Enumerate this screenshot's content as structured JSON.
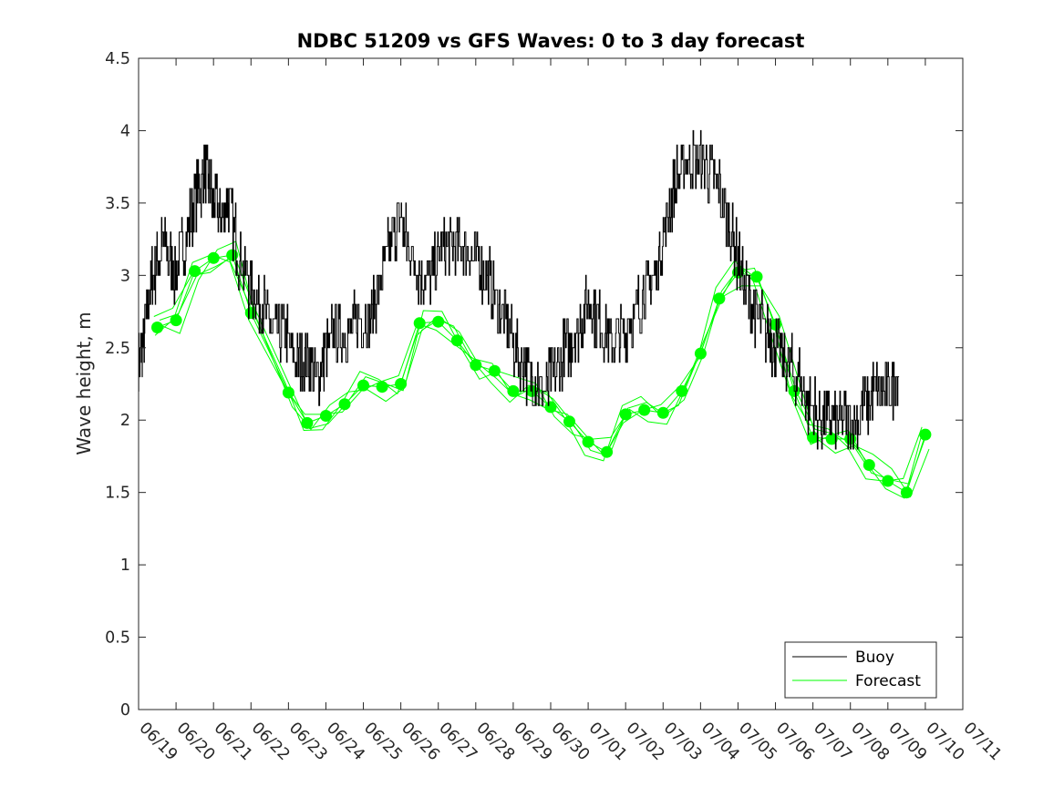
{
  "chart_data": {
    "type": "line",
    "title": "NDBC 51209 vs GFS Waves: 0 to 3 day forecast",
    "xlabel": "",
    "ylabel": "Wave height, m",
    "xlim": [
      "06/19",
      "07/11"
    ],
    "ylim": [
      0,
      4.5
    ],
    "y_ticks": [
      "0",
      "0.5",
      "1",
      "1.5",
      "2",
      "2.5",
      "3",
      "3.5",
      "4",
      "4.5"
    ],
    "x_ticks": [
      "06/19",
      "06/20",
      "06/21",
      "06/22",
      "06/23",
      "06/24",
      "06/25",
      "06/26",
      "06/27",
      "06/28",
      "06/29",
      "06/30",
      "07/01",
      "07/02",
      "07/03",
      "07/04",
      "07/05",
      "07/06",
      "07/07",
      "07/08",
      "07/09",
      "07/10",
      "07/11"
    ],
    "grid": false,
    "legend_position": "bottom-right",
    "colors": {
      "buoy": "#000000",
      "forecast": "#00ff00"
    },
    "series": [
      {
        "name": "Buoy",
        "style": "line",
        "x": [
          0.0,
          0.1,
          0.3,
          0.5,
          0.7,
          1.0,
          1.3,
          1.6,
          1.8,
          2.0,
          2.2,
          2.4,
          2.7,
          3.0,
          3.3,
          3.6,
          3.9,
          4.2,
          4.5,
          4.8,
          5.0,
          5.3,
          5.6,
          5.9,
          6.2,
          6.5,
          6.8,
          7.0,
          7.2,
          7.5,
          7.8,
          8.1,
          8.4,
          8.7,
          9.0,
          9.3,
          9.6,
          9.9,
          10.2,
          10.5,
          10.8,
          11.1,
          11.4,
          11.7,
          12.0,
          12.3,
          12.6,
          12.9,
          13.2,
          13.5,
          13.8,
          14.1,
          14.4,
          14.7,
          15.0,
          15.3,
          15.6,
          15.9,
          16.2,
          16.5,
          16.8,
          17.0,
          17.3,
          17.6,
          17.9,
          18.2,
          18.5,
          18.8,
          19.1,
          19.4,
          19.7,
          20.0,
          20.3
        ],
        "y": [
          2.4,
          2.5,
          2.9,
          3.1,
          3.2,
          3.0,
          3.3,
          3.6,
          3.7,
          3.5,
          3.4,
          3.5,
          3.1,
          2.9,
          2.8,
          2.6,
          2.6,
          2.4,
          2.4,
          2.3,
          2.5,
          2.6,
          2.6,
          2.7,
          2.7,
          3.0,
          3.3,
          3.4,
          3.2,
          3.0,
          3.0,
          3.2,
          3.2,
          3.2,
          3.1,
          3.0,
          2.8,
          2.6,
          2.4,
          2.3,
          2.2,
          2.3,
          2.5,
          2.6,
          2.8,
          2.7,
          2.5,
          2.6,
          2.7,
          2.9,
          3.0,
          3.4,
          3.7,
          3.8,
          3.8,
          3.7,
          3.5,
          3.2,
          2.9,
          2.7,
          2.6,
          2.5,
          2.4,
          2.3,
          2.1,
          2.0,
          2.0,
          1.95,
          2.0,
          2.1,
          2.2,
          2.2,
          2.3
        ]
      },
      {
        "name": "Forecast",
        "style": "lines+markers",
        "x": [
          0.5,
          1.0,
          1.5,
          2.0,
          2.5,
          3.0,
          4.0,
          4.5,
          5.0,
          5.5,
          6.0,
          6.5,
          7.0,
          7.5,
          8.0,
          8.5,
          9.0,
          9.5,
          10.0,
          10.5,
          11.0,
          11.5,
          12.0,
          12.5,
          13.0,
          13.5,
          14.0,
          14.5,
          15.0,
          15.5,
          16.0,
          16.5,
          17.0,
          17.5,
          18.0,
          18.5,
          19.0,
          19.5,
          20.0,
          20.5,
          21.0
        ],
        "y": [
          2.64,
          2.69,
          3.03,
          3.12,
          3.14,
          2.74,
          2.19,
          1.98,
          2.03,
          2.11,
          2.24,
          2.23,
          2.25,
          2.67,
          2.68,
          2.55,
          2.38,
          2.34,
          2.2,
          2.2,
          2.09,
          1.99,
          1.85,
          1.78,
          2.04,
          2.07,
          2.05,
          2.2,
          2.46,
          2.84,
          3.02,
          2.99,
          2.66,
          2.2,
          1.88,
          1.87,
          1.87,
          1.69,
          1.58,
          1.5,
          1.9
        ]
      }
    ],
    "legend": [
      {
        "label": "Buoy",
        "color": "#000000"
      },
      {
        "label": "Forecast",
        "color": "#00ff00"
      }
    ]
  }
}
